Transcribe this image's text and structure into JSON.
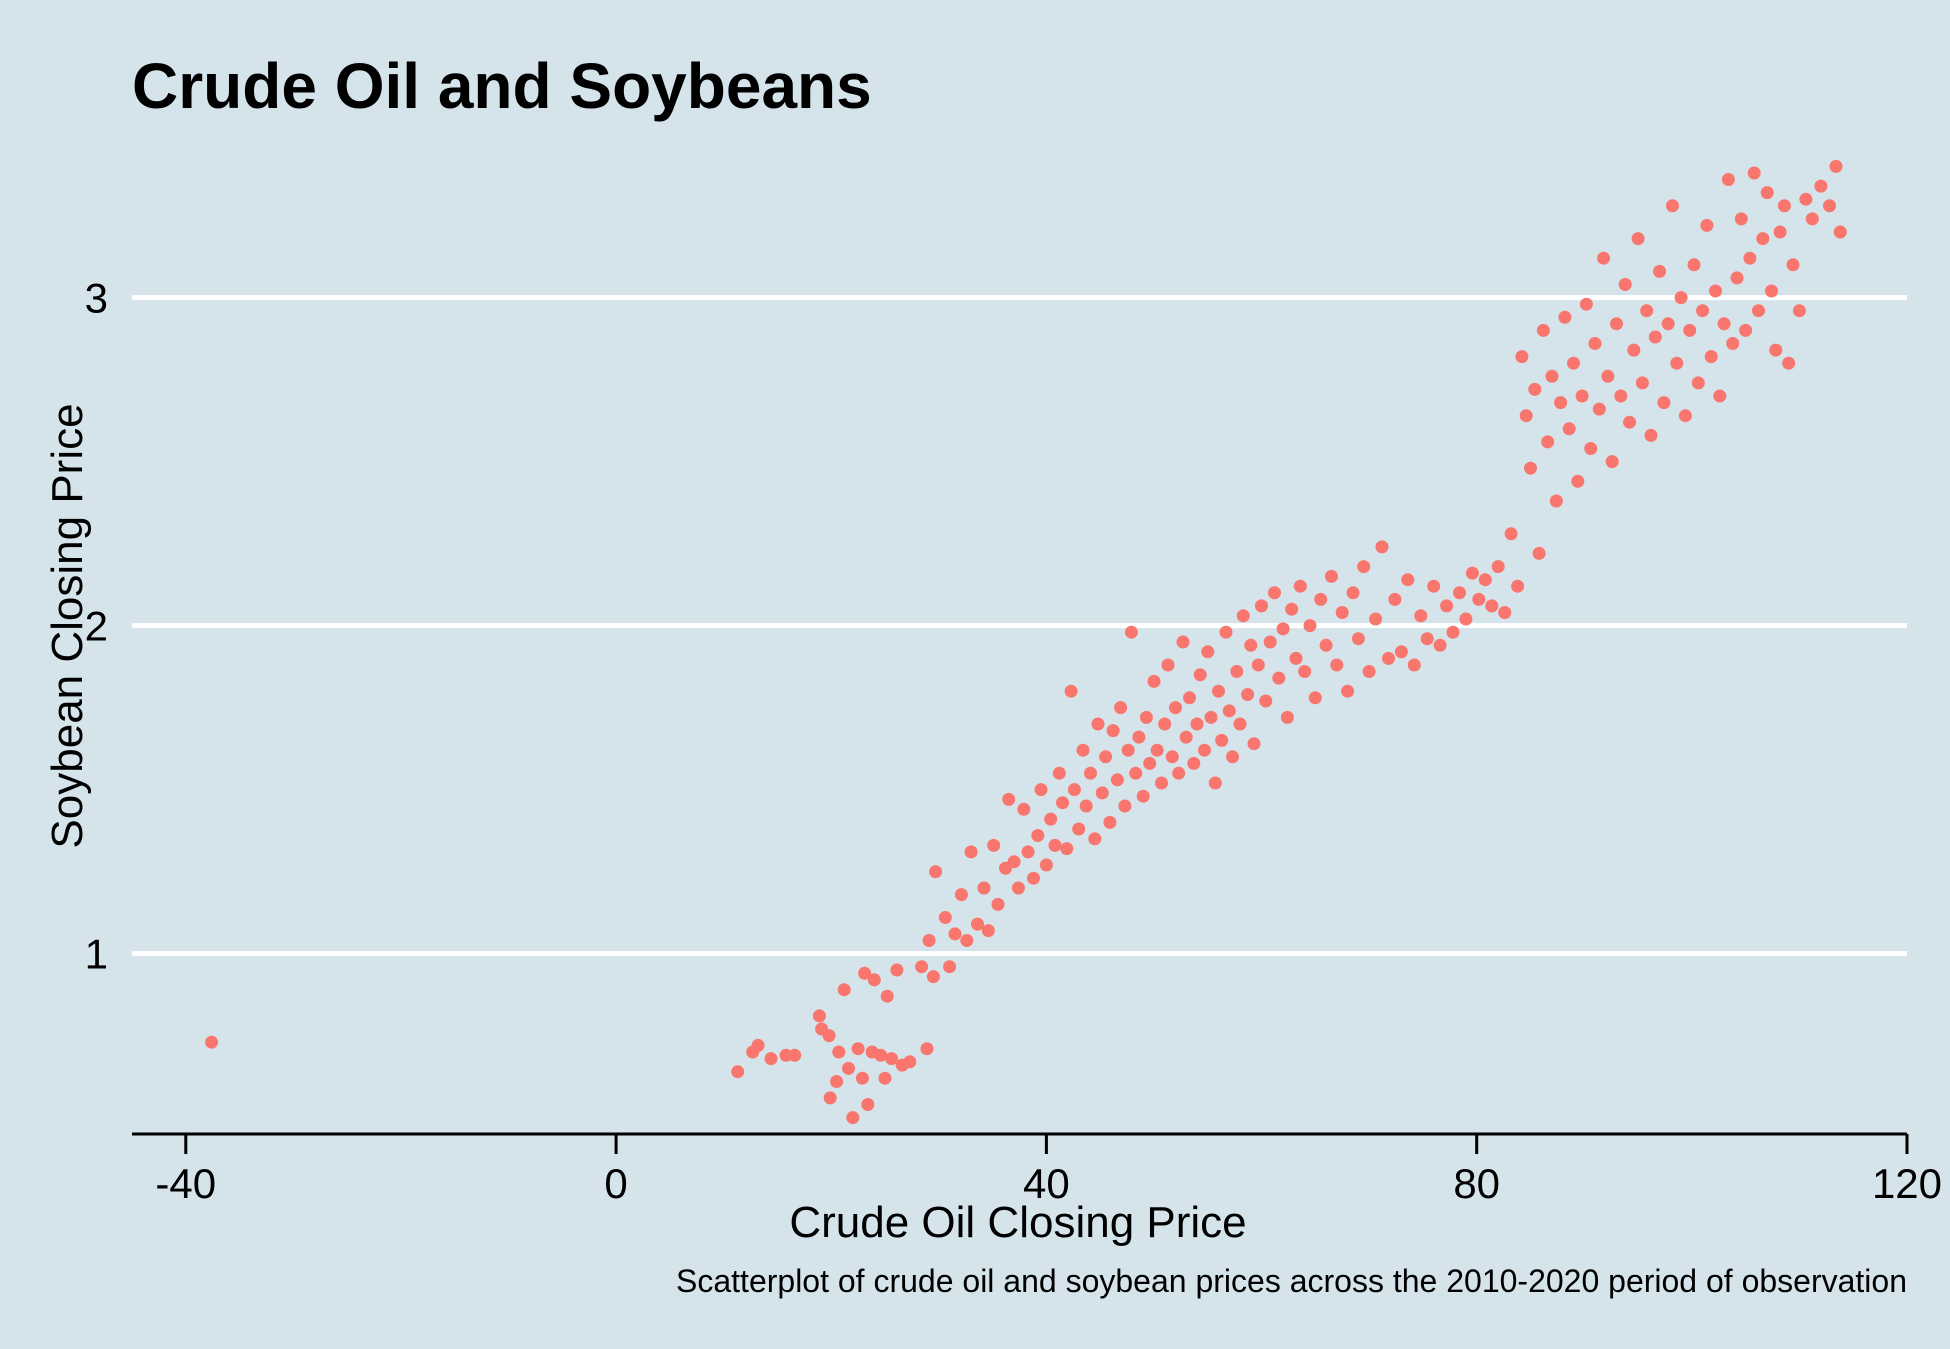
{
  "chart_data": {
    "type": "scatter",
    "title": "Crude Oil and Soybeans",
    "xlabel": "Crude Oil Closing Price",
    "ylabel": "Soybean Closing Price",
    "caption": "Scatterplot of crude oil and soybean prices across the 2010-2020 period of observation",
    "xlim": [
      -45,
      120
    ],
    "ylim": [
      0.45,
      3.45
    ],
    "x_ticks": [
      -40,
      0,
      40,
      80,
      120
    ],
    "x_tick_labels": [
      "-40",
      "0",
      "40",
      "80",
      "120"
    ],
    "y_ticks": [
      1,
      2,
      3
    ],
    "y_tick_labels": [
      "1",
      "2",
      "3"
    ],
    "grid": "horizontal major gridlines only",
    "legend": "none",
    "point_color": "#f8766d",
    "background_color": "#d5e4eb",
    "points": [
      [
        -37.6,
        0.73
      ],
      [
        11.3,
        0.64
      ],
      [
        12.7,
        0.7
      ],
      [
        13.2,
        0.72
      ],
      [
        14.4,
        0.68
      ],
      [
        15.8,
        0.69
      ],
      [
        16.6,
        0.69
      ],
      [
        18.9,
        0.81
      ],
      [
        19.1,
        0.77
      ],
      [
        19.8,
        0.75
      ],
      [
        19.9,
        0.56
      ],
      [
        20.5,
        0.61
      ],
      [
        20.7,
        0.7
      ],
      [
        21.2,
        0.89
      ],
      [
        21.6,
        0.65
      ],
      [
        22.0,
        0.5
      ],
      [
        22.5,
        0.71
      ],
      [
        22.9,
        0.62
      ],
      [
        23.1,
        0.94
      ],
      [
        23.4,
        0.54
      ],
      [
        23.8,
        0.7
      ],
      [
        24.0,
        0.92
      ],
      [
        24.6,
        0.69
      ],
      [
        25.0,
        0.62
      ],
      [
        25.2,
        0.87
      ],
      [
        25.6,
        0.68
      ],
      [
        26.1,
        0.95
      ],
      [
        26.6,
        0.66
      ],
      [
        27.3,
        0.67
      ],
      [
        28.4,
        0.96
      ],
      [
        28.9,
        0.71
      ],
      [
        29.1,
        1.04
      ],
      [
        29.5,
        0.93
      ],
      [
        29.7,
        1.25
      ],
      [
        30.6,
        1.11
      ],
      [
        31.0,
        0.96
      ],
      [
        31.5,
        1.06
      ],
      [
        32.1,
        1.18
      ],
      [
        32.6,
        1.04
      ],
      [
        33.0,
        1.31
      ],
      [
        33.6,
        1.09
      ],
      [
        34.2,
        1.2
      ],
      [
        34.6,
        1.07
      ],
      [
        35.1,
        1.33
      ],
      [
        35.5,
        1.15
      ],
      [
        36.2,
        1.26
      ],
      [
        36.5,
        1.47
      ],
      [
        37.0,
        1.28
      ],
      [
        37.4,
        1.2
      ],
      [
        37.9,
        1.44
      ],
      [
        38.3,
        1.31
      ],
      [
        38.8,
        1.23
      ],
      [
        39.2,
        1.36
      ],
      [
        39.5,
        1.5
      ],
      [
        40.0,
        1.27
      ],
      [
        40.4,
        1.41
      ],
      [
        40.8,
        1.33
      ],
      [
        41.2,
        1.55
      ],
      [
        41.5,
        1.46
      ],
      [
        41.9,
        1.32
      ],
      [
        42.3,
        1.8
      ],
      [
        42.6,
        1.5
      ],
      [
        43.0,
        1.38
      ],
      [
        43.4,
        1.62
      ],
      [
        43.7,
        1.45
      ],
      [
        44.1,
        1.55
      ],
      [
        44.5,
        1.35
      ],
      [
        44.8,
        1.7
      ],
      [
        45.2,
        1.49
      ],
      [
        45.5,
        1.6
      ],
      [
        45.9,
        1.4
      ],
      [
        46.2,
        1.68
      ],
      [
        46.6,
        1.53
      ],
      [
        46.9,
        1.75
      ],
      [
        47.3,
        1.45
      ],
      [
        47.6,
        1.62
      ],
      [
        47.9,
        1.98
      ],
      [
        48.3,
        1.55
      ],
      [
        48.6,
        1.66
      ],
      [
        49.0,
        1.48
      ],
      [
        49.3,
        1.72
      ],
      [
        49.6,
        1.58
      ],
      [
        50.0,
        1.83
      ],
      [
        50.3,
        1.62
      ],
      [
        50.7,
        1.52
      ],
      [
        51.0,
        1.7
      ],
      [
        51.3,
        1.88
      ],
      [
        51.7,
        1.6
      ],
      [
        52.0,
        1.75
      ],
      [
        52.3,
        1.55
      ],
      [
        52.7,
        1.95
      ],
      [
        53.0,
        1.66
      ],
      [
        53.3,
        1.78
      ],
      [
        53.7,
        1.58
      ],
      [
        54.0,
        1.7
      ],
      [
        54.3,
        1.85
      ],
      [
        54.7,
        1.62
      ],
      [
        55.0,
        1.92
      ],
      [
        55.3,
        1.72
      ],
      [
        55.7,
        1.52
      ],
      [
        56.0,
        1.8
      ],
      [
        56.3,
        1.65
      ],
      [
        56.7,
        1.98
      ],
      [
        57.0,
        1.74
      ],
      [
        57.3,
        1.6
      ],
      [
        57.7,
        1.86
      ],
      [
        58.0,
        1.7
      ],
      [
        58.3,
        2.03
      ],
      [
        58.7,
        1.79
      ],
      [
        59.0,
        1.94
      ],
      [
        59.3,
        1.64
      ],
      [
        59.7,
        1.88
      ],
      [
        60.0,
        2.06
      ],
      [
        60.4,
        1.77
      ],
      [
        60.8,
        1.95
      ],
      [
        61.2,
        2.1
      ],
      [
        61.6,
        1.84
      ],
      [
        62.0,
        1.99
      ],
      [
        62.4,
        1.72
      ],
      [
        62.8,
        2.05
      ],
      [
        63.2,
        1.9
      ],
      [
        63.6,
        2.12
      ],
      [
        64.0,
        1.86
      ],
      [
        64.5,
        2.0
      ],
      [
        65.0,
        1.78
      ],
      [
        65.5,
        2.08
      ],
      [
        66.0,
        1.94
      ],
      [
        66.5,
        2.15
      ],
      [
        67.0,
        1.88
      ],
      [
        67.5,
        2.04
      ],
      [
        68.0,
        1.8
      ],
      [
        68.5,
        2.1
      ],
      [
        69.0,
        1.96
      ],
      [
        69.5,
        2.18
      ],
      [
        70.0,
        1.86
      ],
      [
        70.6,
        2.02
      ],
      [
        71.2,
        2.24
      ],
      [
        71.8,
        1.9
      ],
      [
        72.4,
        2.08
      ],
      [
        73.0,
        1.92
      ],
      [
        73.6,
        2.14
      ],
      [
        74.2,
        1.88
      ],
      [
        74.8,
        2.03
      ],
      [
        75.4,
        1.96
      ],
      [
        76.0,
        2.12
      ],
      [
        76.6,
        1.94
      ],
      [
        77.2,
        2.06
      ],
      [
        77.8,
        1.98
      ],
      [
        78.4,
        2.1
      ],
      [
        79.0,
        2.02
      ],
      [
        79.6,
        2.16
      ],
      [
        80.2,
        2.08
      ],
      [
        80.8,
        2.14
      ],
      [
        81.4,
        2.06
      ],
      [
        82.0,
        2.18
      ],
      [
        82.6,
        2.04
      ],
      [
        83.2,
        2.28
      ],
      [
        83.8,
        2.12
      ],
      [
        84.2,
        2.82
      ],
      [
        84.6,
        2.64
      ],
      [
        85.0,
        2.48
      ],
      [
        85.4,
        2.72
      ],
      [
        85.8,
        2.22
      ],
      [
        86.2,
        2.9
      ],
      [
        86.6,
        2.56
      ],
      [
        87.0,
        2.76
      ],
      [
        87.4,
        2.38
      ],
      [
        87.8,
        2.68
      ],
      [
        88.2,
        2.94
      ],
      [
        88.6,
        2.6
      ],
      [
        89.0,
        2.8
      ],
      [
        89.4,
        2.44
      ],
      [
        89.8,
        2.7
      ],
      [
        90.2,
        2.98
      ],
      [
        90.6,
        2.54
      ],
      [
        91.0,
        2.86
      ],
      [
        91.4,
        2.66
      ],
      [
        91.8,
        3.12
      ],
      [
        92.2,
        2.76
      ],
      [
        92.6,
        2.5
      ],
      [
        93.0,
        2.92
      ],
      [
        93.4,
        2.7
      ],
      [
        93.8,
        3.04
      ],
      [
        94.2,
        2.62
      ],
      [
        94.6,
        2.84
      ],
      [
        95.0,
        3.18
      ],
      [
        95.4,
        2.74
      ],
      [
        95.8,
        2.96
      ],
      [
        96.2,
        2.58
      ],
      [
        96.6,
        2.88
      ],
      [
        97.0,
        3.08
      ],
      [
        97.4,
        2.68
      ],
      [
        97.8,
        2.92
      ],
      [
        98.2,
        3.28
      ],
      [
        98.6,
        2.8
      ],
      [
        99.0,
        3.0
      ],
      [
        99.4,
        2.64
      ],
      [
        99.8,
        2.9
      ],
      [
        100.2,
        3.1
      ],
      [
        100.6,
        2.74
      ],
      [
        101.0,
        2.96
      ],
      [
        101.4,
        3.22
      ],
      [
        101.8,
        2.82
      ],
      [
        102.2,
        3.02
      ],
      [
        102.6,
        2.7
      ],
      [
        103.0,
        2.92
      ],
      [
        103.4,
        3.36
      ],
      [
        103.8,
        2.86
      ],
      [
        104.2,
        3.06
      ],
      [
        104.6,
        3.24
      ],
      [
        105.0,
        2.9
      ],
      [
        105.4,
        3.12
      ],
      [
        105.8,
        3.38
      ],
      [
        106.2,
        2.96
      ],
      [
        106.6,
        3.18
      ],
      [
        107.0,
        3.32
      ],
      [
        107.4,
        3.02
      ],
      [
        107.8,
        2.84
      ],
      [
        108.2,
        3.2
      ],
      [
        108.6,
        3.28
      ],
      [
        109.0,
        2.8
      ],
      [
        109.4,
        3.1
      ],
      [
        110.0,
        2.96
      ],
      [
        110.6,
        3.3
      ],
      [
        111.2,
        3.24
      ],
      [
        112.0,
        3.34
      ],
      [
        112.8,
        3.28
      ],
      [
        113.4,
        3.4
      ],
      [
        113.8,
        3.2
      ]
    ]
  }
}
